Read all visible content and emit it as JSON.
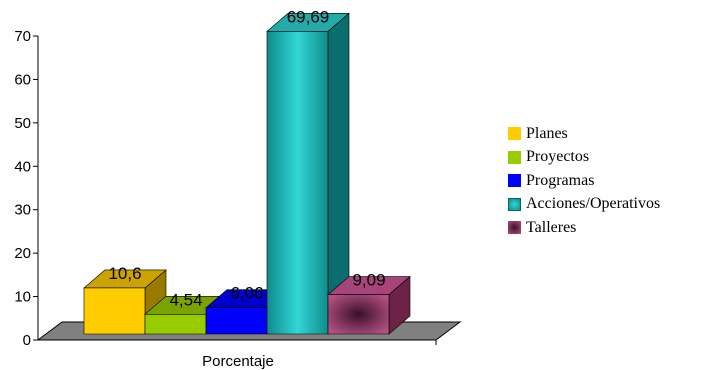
{
  "chart_data": {
    "type": "bar",
    "categories": [
      "Porcentaje"
    ],
    "series": [
      {
        "name": "Planes",
        "values": [
          10.6
        ],
        "label": "10,6",
        "color": "#FFCC00"
      },
      {
        "name": "Proyectos",
        "values": [
          4.54
        ],
        "label": "4,54",
        "color": "#99CC00"
      },
      {
        "name": "Programas",
        "values": [
          6.06
        ],
        "label": "6,06",
        "color": "#0000FF"
      },
      {
        "name": "Acciones/Operativos",
        "values": [
          69.69
        ],
        "label": "69,69",
        "color": "#33CCCC"
      },
      {
        "name": "Talleres",
        "values": [
          9.09
        ],
        "label": "9,09",
        "color": "#993366"
      }
    ],
    "ylim": [
      0,
      70
    ],
    "yticks": [
      0,
      10,
      20,
      30,
      40,
      50,
      60,
      70
    ],
    "title": "",
    "xlabel": "",
    "ylabel": "",
    "legend_position": "right",
    "grid": false,
    "style": "3d"
  }
}
